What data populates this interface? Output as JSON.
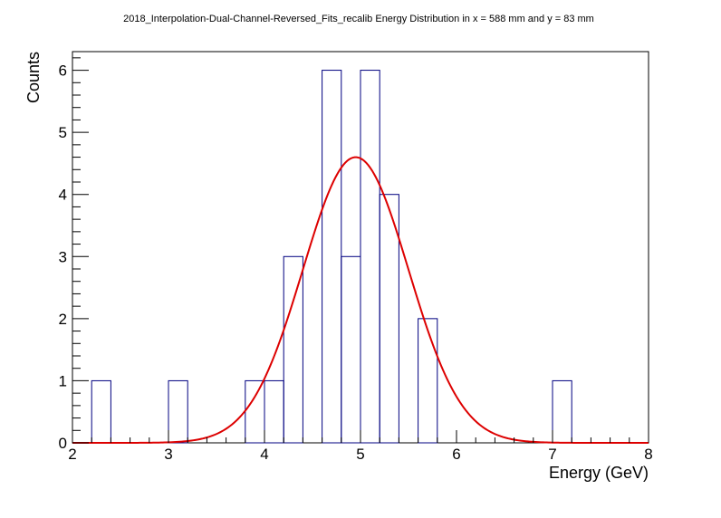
{
  "chart_data": {
    "type": "histogram",
    "title": "2018_Interpolation-Dual-Channel-Reversed_Fits_recalib Energy Distribution in x = 588 mm and y = 83 mm",
    "xlabel": "Energy (GeV)",
    "ylabel": "Counts",
    "xlim": [
      2,
      8
    ],
    "ylim": [
      0,
      6.3
    ],
    "x_ticks": [
      "2",
      "3",
      "4",
      "5",
      "6",
      "7",
      "8"
    ],
    "y_ticks": [
      "0",
      "1",
      "2",
      "3",
      "4",
      "5",
      "6"
    ],
    "grid": false,
    "legend": "none",
    "bin_width": 0.2,
    "bins": [
      {
        "x_low": 2.2,
        "count": 1
      },
      {
        "x_low": 3.0,
        "count": 1
      },
      {
        "x_low": 3.8,
        "count": 1
      },
      {
        "x_low": 4.0,
        "count": 1
      },
      {
        "x_low": 4.2,
        "count": 3
      },
      {
        "x_low": 4.6,
        "count": 6
      },
      {
        "x_low": 4.8,
        "count": 3
      },
      {
        "x_low": 5.0,
        "count": 6
      },
      {
        "x_low": 5.2,
        "count": 4
      },
      {
        "x_low": 5.6,
        "count": 2
      },
      {
        "x_low": 7.0,
        "count": 1
      }
    ],
    "fit": {
      "function": "gaussian",
      "amplitude": 4.6,
      "mean": 4.95,
      "sigma": 0.55
    },
    "colors": {
      "histogram": "#000080",
      "fit": "#dd0000",
      "axis": "#000000"
    }
  }
}
